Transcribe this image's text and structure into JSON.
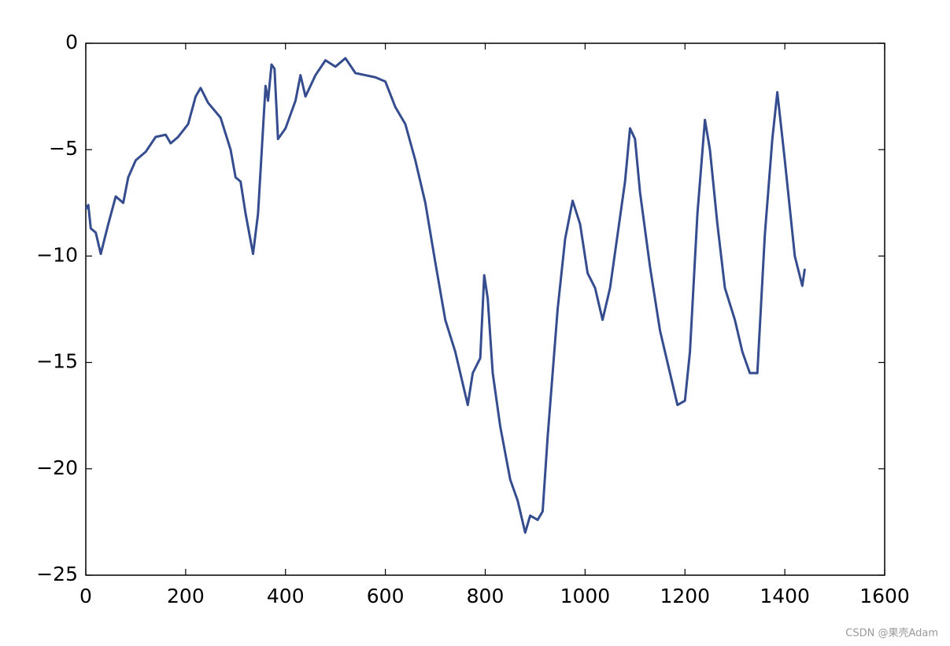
{
  "chart_data": {
    "type": "line",
    "x": [
      0,
      5,
      10,
      20,
      30,
      45,
      60,
      75,
      85,
      100,
      120,
      140,
      160,
      170,
      185,
      205,
      220,
      230,
      245,
      270,
      290,
      300,
      310,
      320,
      335,
      345,
      355,
      360,
      365,
      372,
      378,
      385,
      400,
      420,
      430,
      440,
      460,
      480,
      500,
      520,
      540,
      560,
      580,
      600,
      620,
      640,
      660,
      680,
      700,
      720,
      740,
      755,
      765,
      775,
      790,
      798,
      805,
      815,
      830,
      850,
      865,
      880,
      890,
      905,
      915,
      925,
      945,
      960,
      975,
      990,
      1005,
      1020,
      1035,
      1050,
      1065,
      1080,
      1090,
      1100,
      1110,
      1130,
      1150,
      1170,
      1185,
      1200,
      1210,
      1225,
      1240,
      1250,
      1265,
      1280,
      1300,
      1315,
      1330,
      1345,
      1360,
      1375,
      1385,
      1400,
      1420,
      1435,
      1440
    ],
    "series": [
      {
        "name": null,
        "color": "#354d8f",
        "values": [
          -7.8,
          -7.6,
          -8.7,
          -8.9,
          -9.9,
          -8.5,
          -7.2,
          -7.5,
          -6.3,
          -5.5,
          -5.1,
          -4.4,
          -4.3,
          -4.7,
          -4.4,
          -3.8,
          -2.5,
          -2.1,
          -2.8,
          -3.5,
          -5.0,
          -6.3,
          -6.5,
          -8.0,
          -9.9,
          -8.0,
          -4.0,
          -2.0,
          -2.7,
          -1.0,
          -1.2,
          -4.5,
          -4.0,
          -2.7,
          -1.5,
          -2.5,
          -1.5,
          -0.8,
          -1.1,
          -0.7,
          -1.4,
          -1.5,
          -1.6,
          -1.8,
          -3.0,
          -3.8,
          -5.5,
          -7.5,
          -10.3,
          -13.0,
          -14.5,
          -16.0,
          -17.0,
          -15.5,
          -14.8,
          -10.9,
          -12.0,
          -15.5,
          -18.0,
          -20.5,
          -21.5,
          -23.0,
          -22.2,
          -22.4,
          -22.0,
          -18.5,
          -12.5,
          -9.2,
          -7.4,
          -8.5,
          -10.8,
          -11.5,
          -13.0,
          -11.5,
          -9.0,
          -6.5,
          -4.0,
          -4.5,
          -7.0,
          -10.5,
          -13.5,
          -15.5,
          -17.0,
          -16.8,
          -14.5,
          -8.0,
          -3.6,
          -5.0,
          -8.5,
          -11.5,
          -13.0,
          -14.5,
          -15.5,
          -15.5,
          -9.0,
          -4.5,
          -2.3,
          -5.5,
          -10.0,
          -11.4,
          -10.6
        ]
      }
    ],
    "xlim": [
      0,
      1600
    ],
    "xticks": [
      0,
      200,
      400,
      600,
      800,
      1000,
      1200,
      1400,
      1600
    ],
    "ylim": [
      -25,
      0
    ],
    "yticks": [
      {
        "value": -25,
        "label": "−25"
      },
      {
        "value": -20,
        "label": "−20"
      },
      {
        "value": -15,
        "label": "−15"
      },
      {
        "value": -10,
        "label": "−10"
      },
      {
        "value": -5,
        "label": "−5"
      },
      0
    ],
    "grid": false
  },
  "watermark": "CSDN @果壳Adam"
}
